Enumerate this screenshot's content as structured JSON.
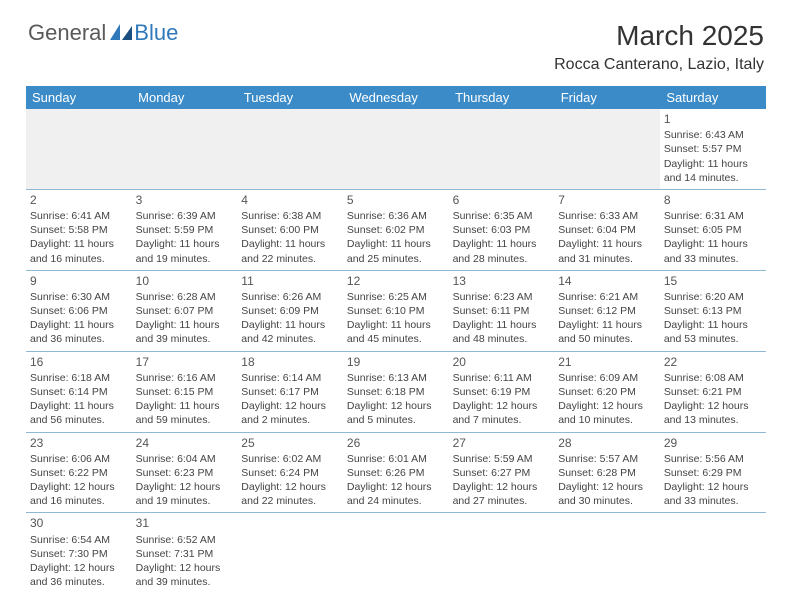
{
  "logo": {
    "textDark": "General",
    "textBlue": "Blue"
  },
  "title": "March 2025",
  "location": "Rocca Canterano, Lazio, Italy",
  "colors": {
    "headerBg": "#3b8bc8",
    "headerText": "#ffffff",
    "cellBorder": "#8fb7d6",
    "blankBg": "#f0f0f0",
    "bodyText": "#444444",
    "dayNum": "#555555",
    "logoDark": "#5a5a5a",
    "logoBlue": "#2f79bb"
  },
  "weekdays": [
    "Sunday",
    "Monday",
    "Tuesday",
    "Wednesday",
    "Thursday",
    "Friday",
    "Saturday"
  ],
  "weeks": [
    [
      null,
      null,
      null,
      null,
      null,
      null,
      {
        "n": "1",
        "sr": "Sunrise: 6:43 AM",
        "ss": "Sunset: 5:57 PM",
        "dl": "Daylight: 11 hours and 14 minutes."
      }
    ],
    [
      {
        "n": "2",
        "sr": "Sunrise: 6:41 AM",
        "ss": "Sunset: 5:58 PM",
        "dl": "Daylight: 11 hours and 16 minutes."
      },
      {
        "n": "3",
        "sr": "Sunrise: 6:39 AM",
        "ss": "Sunset: 5:59 PM",
        "dl": "Daylight: 11 hours and 19 minutes."
      },
      {
        "n": "4",
        "sr": "Sunrise: 6:38 AM",
        "ss": "Sunset: 6:00 PM",
        "dl": "Daylight: 11 hours and 22 minutes."
      },
      {
        "n": "5",
        "sr": "Sunrise: 6:36 AM",
        "ss": "Sunset: 6:02 PM",
        "dl": "Daylight: 11 hours and 25 minutes."
      },
      {
        "n": "6",
        "sr": "Sunrise: 6:35 AM",
        "ss": "Sunset: 6:03 PM",
        "dl": "Daylight: 11 hours and 28 minutes."
      },
      {
        "n": "7",
        "sr": "Sunrise: 6:33 AM",
        "ss": "Sunset: 6:04 PM",
        "dl": "Daylight: 11 hours and 31 minutes."
      },
      {
        "n": "8",
        "sr": "Sunrise: 6:31 AM",
        "ss": "Sunset: 6:05 PM",
        "dl": "Daylight: 11 hours and 33 minutes."
      }
    ],
    [
      {
        "n": "9",
        "sr": "Sunrise: 6:30 AM",
        "ss": "Sunset: 6:06 PM",
        "dl": "Daylight: 11 hours and 36 minutes."
      },
      {
        "n": "10",
        "sr": "Sunrise: 6:28 AM",
        "ss": "Sunset: 6:07 PM",
        "dl": "Daylight: 11 hours and 39 minutes."
      },
      {
        "n": "11",
        "sr": "Sunrise: 6:26 AM",
        "ss": "Sunset: 6:09 PM",
        "dl": "Daylight: 11 hours and 42 minutes."
      },
      {
        "n": "12",
        "sr": "Sunrise: 6:25 AM",
        "ss": "Sunset: 6:10 PM",
        "dl": "Daylight: 11 hours and 45 minutes."
      },
      {
        "n": "13",
        "sr": "Sunrise: 6:23 AM",
        "ss": "Sunset: 6:11 PM",
        "dl": "Daylight: 11 hours and 48 minutes."
      },
      {
        "n": "14",
        "sr": "Sunrise: 6:21 AM",
        "ss": "Sunset: 6:12 PM",
        "dl": "Daylight: 11 hours and 50 minutes."
      },
      {
        "n": "15",
        "sr": "Sunrise: 6:20 AM",
        "ss": "Sunset: 6:13 PM",
        "dl": "Daylight: 11 hours and 53 minutes."
      }
    ],
    [
      {
        "n": "16",
        "sr": "Sunrise: 6:18 AM",
        "ss": "Sunset: 6:14 PM",
        "dl": "Daylight: 11 hours and 56 minutes."
      },
      {
        "n": "17",
        "sr": "Sunrise: 6:16 AM",
        "ss": "Sunset: 6:15 PM",
        "dl": "Daylight: 11 hours and 59 minutes."
      },
      {
        "n": "18",
        "sr": "Sunrise: 6:14 AM",
        "ss": "Sunset: 6:17 PM",
        "dl": "Daylight: 12 hours and 2 minutes."
      },
      {
        "n": "19",
        "sr": "Sunrise: 6:13 AM",
        "ss": "Sunset: 6:18 PM",
        "dl": "Daylight: 12 hours and 5 minutes."
      },
      {
        "n": "20",
        "sr": "Sunrise: 6:11 AM",
        "ss": "Sunset: 6:19 PM",
        "dl": "Daylight: 12 hours and 7 minutes."
      },
      {
        "n": "21",
        "sr": "Sunrise: 6:09 AM",
        "ss": "Sunset: 6:20 PM",
        "dl": "Daylight: 12 hours and 10 minutes."
      },
      {
        "n": "22",
        "sr": "Sunrise: 6:08 AM",
        "ss": "Sunset: 6:21 PM",
        "dl": "Daylight: 12 hours and 13 minutes."
      }
    ],
    [
      {
        "n": "23",
        "sr": "Sunrise: 6:06 AM",
        "ss": "Sunset: 6:22 PM",
        "dl": "Daylight: 12 hours and 16 minutes."
      },
      {
        "n": "24",
        "sr": "Sunrise: 6:04 AM",
        "ss": "Sunset: 6:23 PM",
        "dl": "Daylight: 12 hours and 19 minutes."
      },
      {
        "n": "25",
        "sr": "Sunrise: 6:02 AM",
        "ss": "Sunset: 6:24 PM",
        "dl": "Daylight: 12 hours and 22 minutes."
      },
      {
        "n": "26",
        "sr": "Sunrise: 6:01 AM",
        "ss": "Sunset: 6:26 PM",
        "dl": "Daylight: 12 hours and 24 minutes."
      },
      {
        "n": "27",
        "sr": "Sunrise: 5:59 AM",
        "ss": "Sunset: 6:27 PM",
        "dl": "Daylight: 12 hours and 27 minutes."
      },
      {
        "n": "28",
        "sr": "Sunrise: 5:57 AM",
        "ss": "Sunset: 6:28 PM",
        "dl": "Daylight: 12 hours and 30 minutes."
      },
      {
        "n": "29",
        "sr": "Sunrise: 5:56 AM",
        "ss": "Sunset: 6:29 PM",
        "dl": "Daylight: 12 hours and 33 minutes."
      }
    ],
    [
      {
        "n": "30",
        "sr": "Sunrise: 6:54 AM",
        "ss": "Sunset: 7:30 PM",
        "dl": "Daylight: 12 hours and 36 minutes."
      },
      {
        "n": "31",
        "sr": "Sunrise: 6:52 AM",
        "ss": "Sunset: 7:31 PM",
        "dl": "Daylight: 12 hours and 39 minutes."
      },
      null,
      null,
      null,
      null,
      null
    ]
  ]
}
